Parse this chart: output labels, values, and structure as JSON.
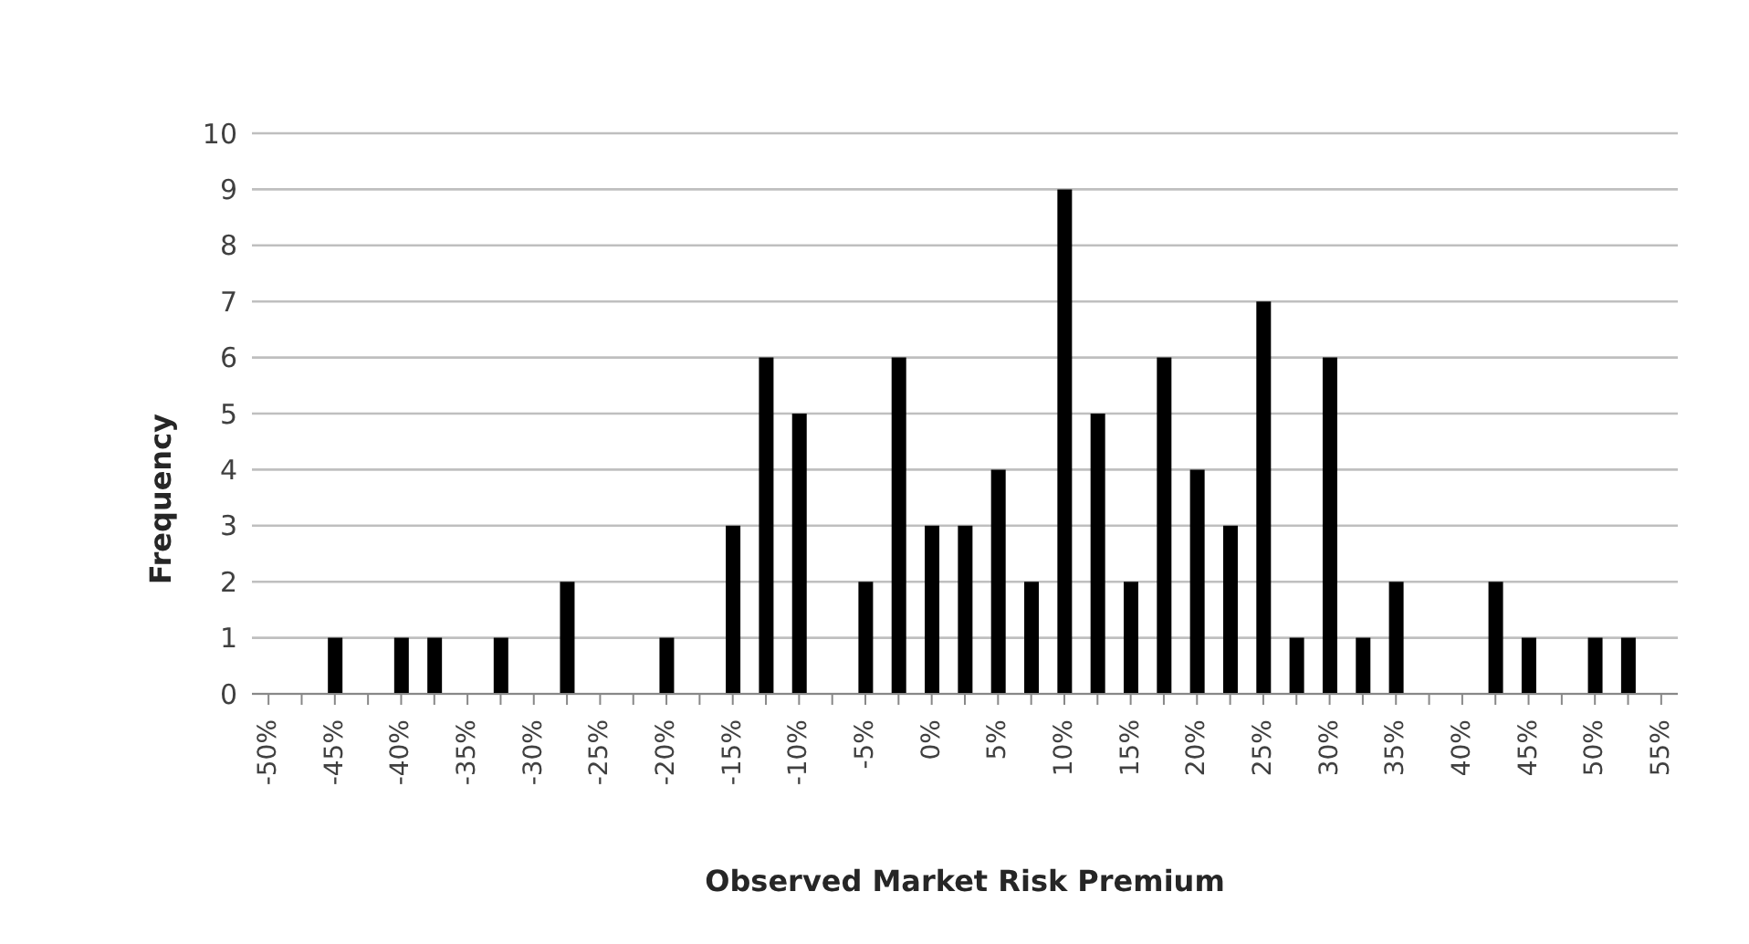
{
  "chart_data": {
    "type": "bar",
    "xlabel": "Observed Market Risk Premium",
    "ylabel": "Frequency",
    "categories": [
      "-50%",
      null,
      "-45%",
      null,
      "-40%",
      null,
      "-35%",
      null,
      "-30%",
      null,
      "-25%",
      null,
      "-20%",
      null,
      "-15%",
      null,
      "-10%",
      null,
      "-5%",
      null,
      "0%",
      null,
      "5%",
      null,
      "10%",
      null,
      "15%",
      null,
      "20%",
      null,
      "25%",
      null,
      "30%",
      null,
      "35%",
      null,
      "40%",
      null,
      "45%",
      null,
      "50%",
      null,
      "55%"
    ],
    "values": [
      0,
      0,
      1,
      0,
      1,
      1,
      0,
      1,
      0,
      2,
      0,
      0,
      1,
      0,
      3,
      6,
      5,
      0,
      2,
      6,
      3,
      3,
      4,
      2,
      9,
      5,
      2,
      6,
      4,
      3,
      7,
      1,
      6,
      1,
      2,
      0,
      0,
      2,
      1,
      0,
      1,
      1,
      0
    ],
    "color": "#000000",
    "ylim": [
      0,
      10
    ],
    "yticks": [
      0,
      1,
      2,
      3,
      4,
      5,
      6,
      7,
      8,
      9,
      10
    ],
    "grid": "y"
  }
}
